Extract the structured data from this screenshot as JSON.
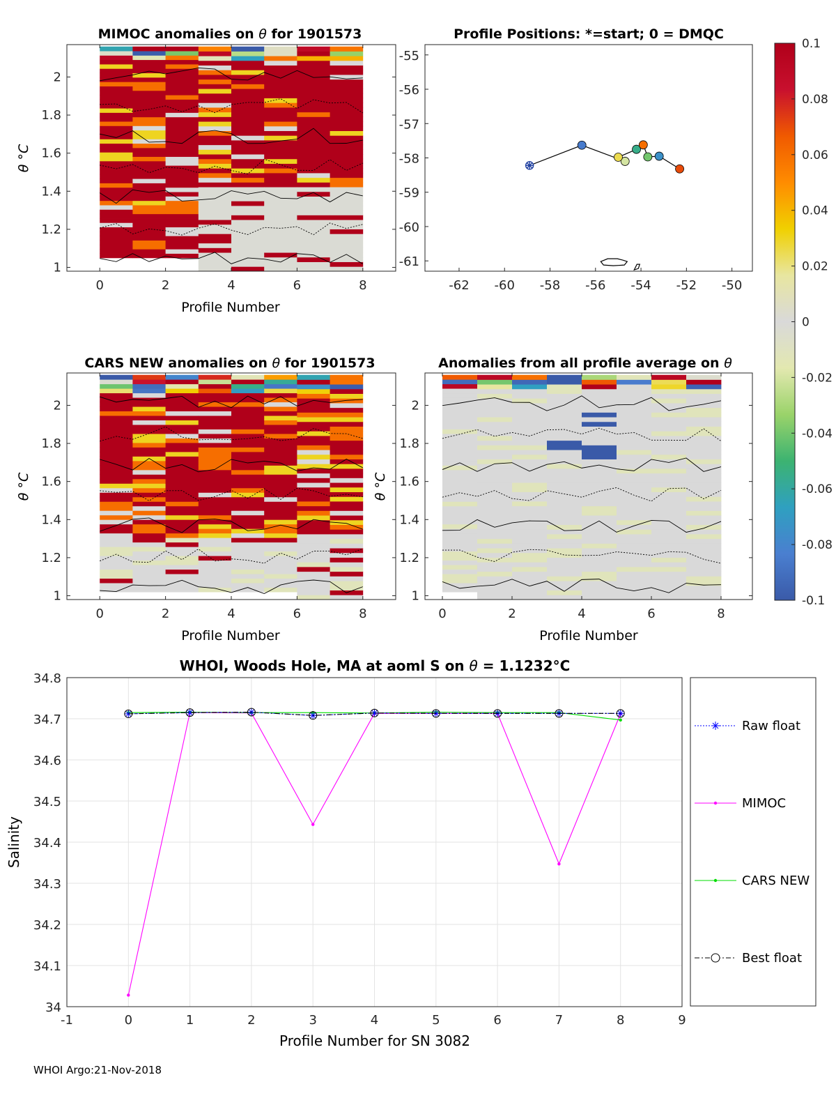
{
  "footer": "WHOI Argo:21-Nov-2018",
  "colorbar": {
    "min": -0.1,
    "max": 0.1,
    "tick_values": [
      0.1,
      0.08,
      0.06,
      0.04,
      0.02,
      0,
      -0.02,
      -0.04,
      -0.06,
      -0.08,
      -0.1
    ],
    "tick_labels": [
      "0.1",
      "0.08",
      "0.06",
      "0.04",
      "0.02",
      "0",
      "-0.02",
      "-0.04",
      "-0.06",
      "-0.08",
      "-0.1"
    ],
    "stops": [
      "#3a5aa8",
      "#4a7fd0",
      "#2fa0c0",
      "#3cb371",
      "#9ad36a",
      "#e3e8b0",
      "#d9d9d9",
      "#e8e6a0",
      "#f0d000",
      "#ff8c00",
      "#f05a00",
      "#c8102e",
      "#b0001a"
    ]
  },
  "chart_data": [
    {
      "id": "mimoc",
      "type": "heatmap",
      "title_pre": "MIMOC anomalies on ",
      "title_sym": "θ",
      "title_post": "  for 1901573",
      "xlabel": "Profile Number",
      "ylabel": "θ °C",
      "xlim": [
        -1,
        9
      ],
      "ylim": [
        0.98,
        2.17
      ],
      "xticks": [
        0,
        2,
        4,
        6,
        8
      ],
      "yticks": [
        1,
        1.2,
        1.4,
        1.6,
        1.8,
        2
      ],
      "ytick_labels": [
        "1",
        "1.2",
        "1.4",
        "1.6",
        "1.8",
        "2"
      ],
      "dominant": "high",
      "theta_bottom": [
        1.05,
        1.05,
        1.05,
        0.98,
        0.98,
        0.98,
        0.98,
        0.98,
        0.98
      ]
    },
    {
      "id": "positions",
      "type": "scatter",
      "title": "Profile Positions: *=start; 0 = DMQC",
      "xlim": [
        -63.5,
        -49.1
      ],
      "ylim": [
        -61.3,
        -54.7
      ],
      "xticks": [
        -62,
        -60,
        -58,
        -56,
        -54,
        -52,
        -50
      ],
      "xtick_labels": [
        "-62",
        "-60",
        "-58",
        "-56",
        "-54",
        "-52",
        "-50"
      ],
      "yticks": [
        -55,
        -56,
        -57,
        -58,
        -59,
        -60,
        -61
      ],
      "ytick_labels": [
        "-55",
        "-56",
        "-57",
        "-58",
        "-59",
        "-60",
        "-61"
      ],
      "lon": [
        -58.9,
        -56.6,
        -54.7,
        -55.0,
        -54.2,
        -53.9,
        -53.7,
        -53.2,
        -52.3
      ],
      "lat": [
        -58.22,
        -57.63,
        -58.1,
        -57.98,
        -57.75,
        -57.62,
        -57.97,
        -57.95,
        -58.32
      ],
      "anomaly": [
        0,
        -0.085,
        -0.02,
        0.025,
        -0.055,
        0.06,
        -0.04,
        -0.075,
        0.07
      ],
      "island_lon": -54.3,
      "island_lat": -61.1
    },
    {
      "id": "cars",
      "type": "heatmap",
      "title_pre": "CARS NEW anomalies on ",
      "title_sym": "θ",
      "title_post": " for 1901573",
      "xlabel": "Profile Number",
      "ylabel": "θ °C",
      "xlim": [
        -1,
        9
      ],
      "ylim": [
        0.98,
        2.17
      ],
      "xticks": [
        0,
        2,
        4,
        6,
        8
      ],
      "yticks": [
        1,
        1.2,
        1.4,
        1.6,
        1.8,
        2
      ],
      "ytick_labels": [
        "1",
        "1.2",
        "1.4",
        "1.6",
        "1.8",
        "2"
      ],
      "dominant": "mixed",
      "theta_bottom": [
        1.02,
        1.02,
        1.02,
        1.02,
        1.02,
        1.02,
        0.98,
        0.98,
        0.98
      ]
    },
    {
      "id": "average",
      "type": "heatmap",
      "title_pre": "Anomalies from all profile average on ",
      "title_sym": "θ",
      "title_post": "",
      "xlabel": "Profile Number",
      "ylabel": "θ °C",
      "xlim": [
        -0.5,
        8.9
      ],
      "ylim": [
        0.98,
        2.17
      ],
      "xticks": [
        0,
        2,
        4,
        6,
        8
      ],
      "yticks": [
        1,
        1.2,
        1.4,
        1.6,
        1.8,
        2
      ],
      "ytick_labels": [
        "1",
        "1.2",
        "1.4",
        "1.6",
        "1.8",
        "2"
      ],
      "dominant": "neutral",
      "theta_bottom": [
        1.02,
        0.98,
        0.98,
        0.98,
        0.98,
        0.98,
        0.98,
        0.98,
        0.98
      ]
    },
    {
      "id": "salinity",
      "type": "line",
      "title_pre": "WHOI, Woods Hole, MA at aoml S on ",
      "title_sym": "θ",
      "title_post": " = 1.1232°C",
      "xlabel": "Profile Number for SN 3082",
      "ylabel": "Salinity",
      "xlim": [
        -1,
        9
      ],
      "ylim": [
        34,
        34.8
      ],
      "xticks": [
        -1,
        0,
        1,
        2,
        3,
        4,
        5,
        6,
        7,
        8,
        9
      ],
      "xtick_labels": [
        "-1",
        "0",
        "1",
        "2",
        "3",
        "4",
        "5",
        "6",
        "7",
        "8",
        "9"
      ],
      "yticks": [
        34,
        34.1,
        34.2,
        34.3,
        34.4,
        34.5,
        34.6,
        34.7,
        34.8
      ],
      "ytick_labels": [
        "34",
        "34.1",
        "34.2",
        "34.3",
        "34.4",
        "34.5",
        "34.6",
        "34.7",
        "34.8"
      ],
      "x": [
        0,
        1,
        2,
        3,
        4,
        5,
        6,
        7,
        8
      ],
      "series": [
        {
          "name": "Raw float",
          "color": "#0000ff",
          "values": [
            34.712,
            34.715,
            34.716,
            34.708,
            34.714,
            34.713,
            34.713,
            34.713,
            34.713
          ]
        },
        {
          "name": "MIMOC",
          "color": "#ff00ff",
          "values": [
            34.028,
            34.715,
            34.714,
            34.443,
            34.713,
            34.713,
            34.713,
            34.347,
            34.712
          ]
        },
        {
          "name": "CARS NEW",
          "color": "#00dd00",
          "values": [
            34.715,
            34.716,
            34.715,
            34.715,
            34.714,
            34.716,
            34.715,
            34.715,
            34.697
          ]
        },
        {
          "name": "Best float",
          "color": "#000000",
          "values": [
            34.712,
            34.715,
            34.716,
            34.708,
            34.714,
            34.713,
            34.713,
            34.713,
            34.713
          ]
        }
      ]
    }
  ]
}
